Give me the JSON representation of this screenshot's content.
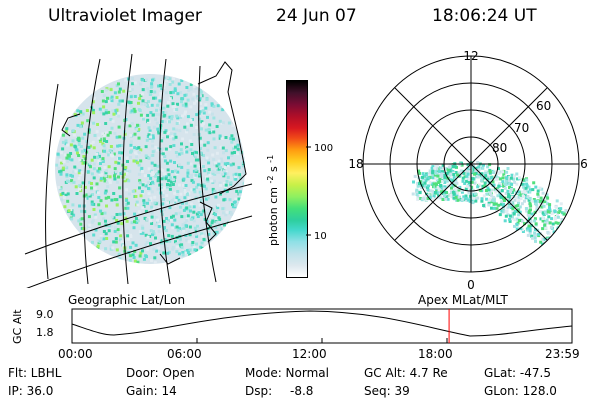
{
  "header": {
    "instrument": "Ultraviolet Imager",
    "date": "24 Jun 07",
    "time": "18:06:24 UT"
  },
  "geo_panel": {
    "label": "Geographic Lat/Lon"
  },
  "apex_panel": {
    "label": "Apex  MLat/MLT",
    "mlt_labels": [
      "12",
      "18",
      "6",
      "0"
    ],
    "lat_labels": [
      "60",
      "70",
      "80"
    ]
  },
  "colorbar": {
    "unit_label": "photon cm",
    "unit_exp1": "-2",
    "unit_mid": "s",
    "unit_exp2": "-1",
    "tick_100": "100",
    "tick_10": "10",
    "colors": [
      "#ffffff",
      "#dde8ee",
      "#bfe2ea",
      "#8fe0e6",
      "#44d8cc",
      "#2ecf9e",
      "#44e07a",
      "#8ff060",
      "#c8f048",
      "#fff060",
      "#ffd020",
      "#ff9a10",
      "#f04818",
      "#d81820",
      "#b00e28",
      "#7a0c34",
      "#40102a",
      "#000000"
    ]
  },
  "timeline": {
    "y_label": "GC Alt",
    "y_max": "9.0",
    "y_min": "1.8",
    "ticks": [
      "00:00",
      "06:00",
      "12:00",
      "18:00",
      "23:59"
    ],
    "current_time_hours": 18.1,
    "marker_color": "#ff0000"
  },
  "info": {
    "filter": "Flt: LBHL",
    "door": "Door: Open",
    "mode": "Mode: Normal",
    "gc_alt": "GC Alt: 4.7 Re",
    "glat": "GLat: -47.5",
    "ip": "IP: 36.0",
    "gain": "Gain: 14",
    "dsp_label": "Dsp:",
    "dsp_value": "-8.8",
    "seq": "Seq: 39",
    "glon": "GLon: 128.0"
  }
}
